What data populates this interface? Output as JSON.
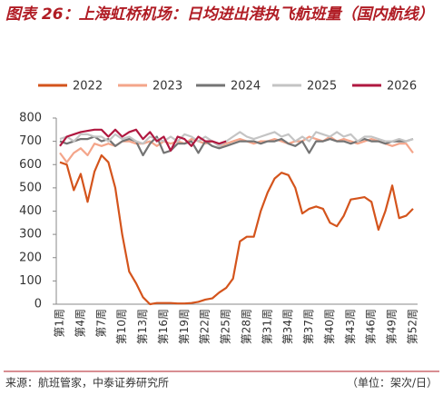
{
  "chart_data": {
    "type": "line",
    "title": "图表 26：上海虹桥机场：日均进出港执飞航班量（国内航线）",
    "source": "来源：航班管家，中泰证券研究所",
    "unit": "（单位：架次/日）",
    "categories": [
      "第1周",
      null,
      null,
      "第4周",
      null,
      null,
      "第7周",
      null,
      null,
      "第10周",
      null,
      null,
      "第13周",
      null,
      null,
      "第16周",
      null,
      null,
      "第19周",
      null,
      null,
      "第22周",
      null,
      null,
      "第25周",
      null,
      null,
      "第28周",
      null,
      null,
      "第31周",
      null,
      null,
      "第34周",
      null,
      null,
      "第37周",
      null,
      null,
      "第40周",
      null,
      null,
      "第43周",
      null,
      null,
      "第46周",
      null,
      null,
      "第49周",
      null,
      null,
      "第52周"
    ],
    "ylim": [
      0,
      800
    ],
    "yticks": [
      0,
      100,
      200,
      300,
      400,
      500,
      600,
      700,
      800
    ],
    "series": [
      {
        "name": "2022",
        "color": "#d4541c",
        "values": [
          610,
          600,
          490,
          560,
          440,
          570,
          640,
          610,
          500,
          300,
          140,
          90,
          30,
          0,
          5,
          5,
          5,
          3,
          3,
          5,
          10,
          20,
          25,
          50,
          70,
          110,
          270,
          290,
          290,
          400,
          480,
          540,
          565,
          555,
          500,
          390,
          410,
          420,
          410,
          350,
          335,
          380,
          450,
          455,
          460,
          440,
          320,
          400,
          510,
          370,
          380,
          410
        ]
      },
      {
        "name": "2023",
        "color": "#f4a58a",
        "values": [
          650,
          610,
          650,
          670,
          640,
          690,
          680,
          690,
          680,
          700,
          700,
          690,
          690,
          700,
          680,
          700,
          690,
          700,
          690,
          710,
          700,
          690,
          700,
          680,
          690,
          700,
          710,
          700,
          690,
          700,
          700,
          710,
          700,
          690,
          700,
          700,
          720,
          710,
          700,
          720,
          700,
          710,
          700,
          690,
          700,
          710,
          700,
          690,
          680,
          690,
          690,
          650
        ]
      },
      {
        "name": "2024",
        "color": "#747474",
        "values": [
          700,
          690,
          700,
          710,
          710,
          720,
          700,
          710,
          680,
          700,
          710,
          700,
          640,
          690,
          720,
          650,
          660,
          690,
          690,
          700,
          650,
          700,
          680,
          670,
          680,
          690,
          700,
          700,
          700,
          690,
          700,
          700,
          710,
          690,
          680,
          700,
          650,
          700,
          700,
          710,
          700,
          700,
          690,
          700,
          710,
          700,
          700,
          690,
          700,
          700,
          700,
          710
        ]
      },
      {
        "name": "2025",
        "color": "#c4c4c4",
        "values": [
          710,
          720,
          700,
          730,
          730,
          720,
          720,
          700,
          730,
          710,
          720,
          700,
          690,
          720,
          710,
          700,
          720,
          700,
          730,
          720,
          700,
          720,
          700,
          680,
          700,
          720,
          740,
          720,
          710,
          720,
          730,
          740,
          720,
          730,
          700,
          720,
          700,
          740,
          730,
          720,
          740,
          720,
          730,
          700,
          720,
          720,
          710,
          700,
          700,
          710,
          700,
          710
        ]
      },
      {
        "name": "2026",
        "color": "#b01840",
        "values": [
          680,
          720,
          730,
          740,
          745,
          750,
          750,
          720,
          750,
          720,
          740,
          750,
          710,
          740,
          700,
          720,
          660,
          720,
          710,
          680,
          720,
          700,
          700,
          690,
          700,
          null,
          null,
          null,
          null,
          null,
          null,
          null,
          null,
          null,
          null,
          null,
          null,
          null,
          null,
          null,
          null,
          null,
          null,
          null,
          null,
          null,
          null,
          null,
          null,
          null,
          null,
          null
        ]
      }
    ]
  }
}
